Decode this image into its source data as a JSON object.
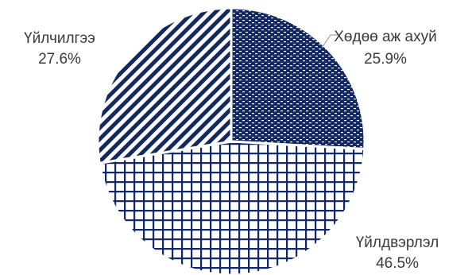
{
  "chart_data": {
    "type": "pie",
    "title": "",
    "slices": [
      {
        "label": "Хөдөө аж ахуй",
        "value": 25.9,
        "value_label": "25.9%",
        "pattern": "dotted-brick",
        "color": "#13285e"
      },
      {
        "label": "Үйлдвэрлэл",
        "value": 46.5,
        "value_label": "46.5%",
        "pattern": "grid",
        "color": "#13285e"
      },
      {
        "label": "Үйлчилгээ",
        "value": 27.6,
        "value_label": "27.6%",
        "pattern": "diagonal-stripes",
        "color": "#13285e"
      }
    ],
    "start_angle_deg": 0,
    "direction": "clockwise",
    "slice_separator_color": "#ffffff",
    "leader_line_color": "#a6a6a6",
    "label_color": "#3a3a3a",
    "legend": "none"
  }
}
